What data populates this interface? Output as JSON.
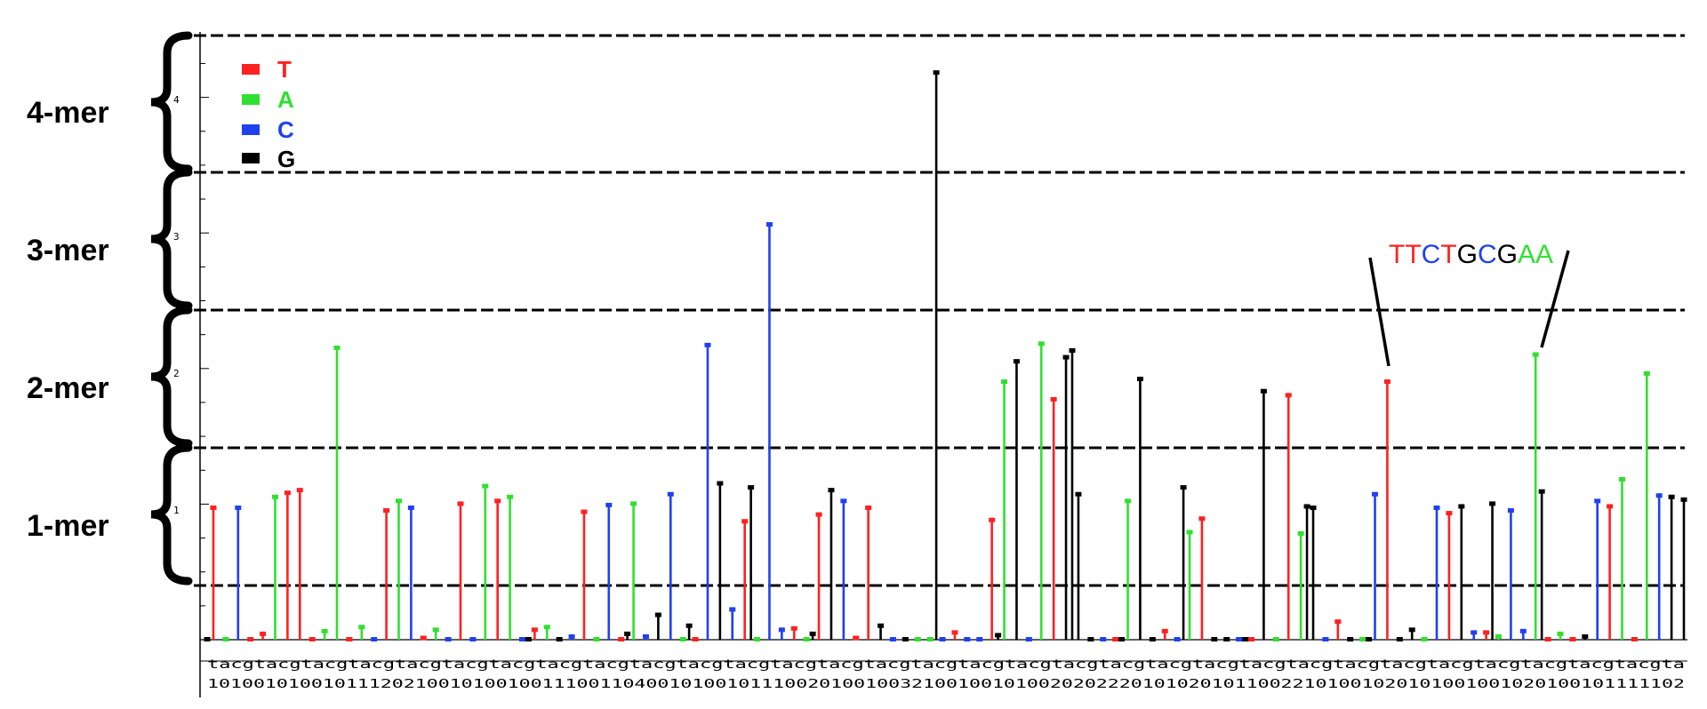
{
  "colors": {
    "T": "#ff2020",
    "A": "#30e030",
    "C": "#2040f0",
    "G": "#000000"
  },
  "levels": [
    {
      "name": "4-mer",
      "tick": "4"
    },
    {
      "name": "3-mer",
      "tick": "3"
    },
    {
      "name": "2-mer",
      "tick": "2"
    },
    {
      "name": "1-mer",
      "tick": "1"
    }
  ],
  "legend": [
    {
      "label": "T",
      "color": "#ff2020"
    },
    {
      "label": "A",
      "color": "#30e030"
    },
    {
      "label": "C",
      "color": "#2040f0"
    },
    {
      "label": "G",
      "color": "#000000"
    }
  ],
  "motif": {
    "letters": [
      {
        "char": "T",
        "color": "#ff2020"
      },
      {
        "char": "T",
        "color": "#ff2020"
      },
      {
        "char": "C",
        "color": "#2040f0"
      },
      {
        "char": "T",
        "color": "#ff2020"
      },
      {
        "char": "G",
        "color": "#000000"
      },
      {
        "char": "C",
        "color": "#2040f0"
      },
      {
        "char": "G",
        "color": "#000000"
      },
      {
        "char": "A",
        "color": "#30e030"
      },
      {
        "char": "A",
        "color": "#30e030"
      }
    ],
    "start_index": 84,
    "end_index": 96
  },
  "xaxis": {
    "row1": "tacgtacgtacgtacgtacgtacgtacgtacgtacgtacgtacgtacgtacgtacgtacgtacgtacgtacgtacgtacgtacgtacgtacgtacgtacgtacgtacgtacgtacgtacgtacgta",
    "row2": "10100101001011120210010100100111001104001010010111002010010032100100101002020222010102010110022101001020101001001020100101111102"
  },
  "chart_data": {
    "type": "bar",
    "chart_style": "stem plot",
    "xlabel": "",
    "ylabel": "",
    "ylim": [
      0,
      4.4
    ],
    "grid": false,
    "legend_position": "top-left",
    "yticks": [
      1,
      2,
      3,
      4
    ],
    "categories_note": "x positions labelled by base (t, a, c, g cycling) with k-mer codes below",
    "series": [
      {
        "name": "T",
        "points": [
          [
            1,
            0.97
          ],
          [
            4,
            0.0
          ],
          [
            5,
            0.04
          ],
          [
            7,
            1.08
          ],
          [
            8,
            1.1
          ],
          [
            9,
            0.0
          ],
          [
            12,
            0.0
          ],
          [
            15,
            0.95
          ],
          [
            18,
            0.01
          ],
          [
            21,
            1.0
          ],
          [
            24,
            1.02
          ],
          [
            27,
            0.07
          ],
          [
            31,
            0.94
          ],
          [
            34,
            0.0
          ],
          [
            40,
            0.0
          ],
          [
            44,
            0.87
          ],
          [
            48,
            0.08
          ],
          [
            50,
            0.92
          ],
          [
            53,
            0.01
          ],
          [
            54,
            0.97
          ],
          [
            61,
            0.05
          ],
          [
            64,
            0.88
          ],
          [
            69,
            1.77
          ],
          [
            74,
            0.0
          ],
          [
            78,
            0.06
          ],
          [
            81,
            0.89
          ],
          [
            85,
            0.0
          ],
          [
            88,
            1.8
          ],
          [
            92,
            0.13
          ],
          [
            96,
            1.9
          ],
          [
            101,
            0.93
          ],
          [
            104,
            0.05
          ],
          [
            109,
            0.0
          ],
          [
            111,
            0.0
          ],
          [
            114,
            0.98
          ],
          [
            116,
            0.0
          ]
        ]
      },
      {
        "name": "A",
        "points": [
          [
            2,
            0.0
          ],
          [
            6,
            1.05
          ],
          [
            10,
            0.06
          ],
          [
            11,
            2.15
          ],
          [
            13,
            0.09
          ],
          [
            16,
            1.02
          ],
          [
            19,
            0.07
          ],
          [
            23,
            1.13
          ],
          [
            25,
            1.05
          ],
          [
            28,
            0.09
          ],
          [
            32,
            0.0
          ],
          [
            35,
            1.0
          ],
          [
            39,
            0.0
          ],
          [
            45,
            0.0
          ],
          [
            49,
            0.0
          ],
          [
            58,
            0.0
          ],
          [
            59,
            0.0
          ],
          [
            65,
            1.9
          ],
          [
            68,
            2.18
          ],
          [
            75,
            1.02
          ],
          [
            80,
            0.79
          ],
          [
            87,
            0.0
          ],
          [
            89,
            0.78
          ],
          [
            94,
            0.0
          ],
          [
            99,
            0.0
          ],
          [
            105,
            0.02
          ],
          [
            108,
            2.1
          ],
          [
            110,
            0.04
          ],
          [
            115,
            1.18
          ],
          [
            117,
            1.96
          ]
        ]
      },
      {
        "name": "C",
        "points": [
          [
            3,
            0.97
          ],
          [
            14,
            0.0
          ],
          [
            17,
            0.97
          ],
          [
            20,
            0.0
          ],
          [
            22,
            0.0
          ],
          [
            26,
            0.0
          ],
          [
            30,
            0.02
          ],
          [
            33,
            0.99
          ],
          [
            36,
            0.02
          ],
          [
            38,
            1.07
          ],
          [
            41,
            2.17
          ],
          [
            43,
            0.22
          ],
          [
            46,
            3.06
          ],
          [
            47,
            0.07
          ],
          [
            52,
            1.02
          ],
          [
            56,
            0.0
          ],
          [
            60,
            0.0
          ],
          [
            62,
            0.0
          ],
          [
            63,
            0.0
          ],
          [
            67,
            0.0
          ],
          [
            73,
            0.0
          ],
          [
            79,
            0.0
          ],
          [
            84,
            0.0
          ],
          [
            91,
            0.0
          ],
          [
            95,
            1.07
          ],
          [
            100,
            0.97
          ],
          [
            103,
            0.05
          ],
          [
            106,
            0.95
          ],
          [
            107,
            0.06
          ],
          [
            113,
            1.02
          ],
          [
            118,
            1.06
          ]
        ]
      },
      {
        "name": "G",
        "points": [
          [
            29,
            0.0
          ],
          [
            37,
            0.18
          ],
          [
            42,
            1.15
          ],
          [
            51,
            1.1
          ],
          [
            55,
            0.1
          ],
          [
            57,
            0.0
          ],
          [
            66,
            2.05
          ],
          [
            70,
            2.08
          ],
          [
            71,
            1.07
          ],
          [
            72,
            0.0
          ],
          [
            76,
            1.92
          ],
          [
            77,
            0.0
          ],
          [
            82,
            0.0
          ],
          [
            83,
            0.0
          ],
          [
            86,
            1.83
          ],
          [
            90,
            0.97
          ],
          [
            93,
            0.0
          ],
          [
            97,
            0.0
          ],
          [
            98,
            0.07
          ],
          [
            102,
            0.98
          ],
          [
            112,
            0.02
          ],
          [
            119,
            1.05
          ],
          [
            120,
            1.03
          ]
        ]
      },
      {
        "name": "G",
        "points": [
          [
            0.5,
            0.0
          ],
          [
            26.5,
            0.0
          ],
          [
            34.5,
            0.04
          ],
          [
            39.5,
            0.1
          ],
          [
            44.5,
            1.12
          ],
          [
            49.5,
            0.04
          ],
          [
            59.5,
            4.18
          ],
          [
            64.5,
            0.03
          ],
          [
            70.5,
            2.13
          ],
          [
            74.5,
            0.0
          ],
          [
            79.5,
            1.12
          ],
          [
            84.5,
            0.0
          ],
          [
            89.5,
            0.98
          ],
          [
            94.5,
            0.0
          ],
          [
            104.5,
            1.0
          ],
          [
            108.5,
            1.09
          ]
        ]
      }
    ]
  }
}
